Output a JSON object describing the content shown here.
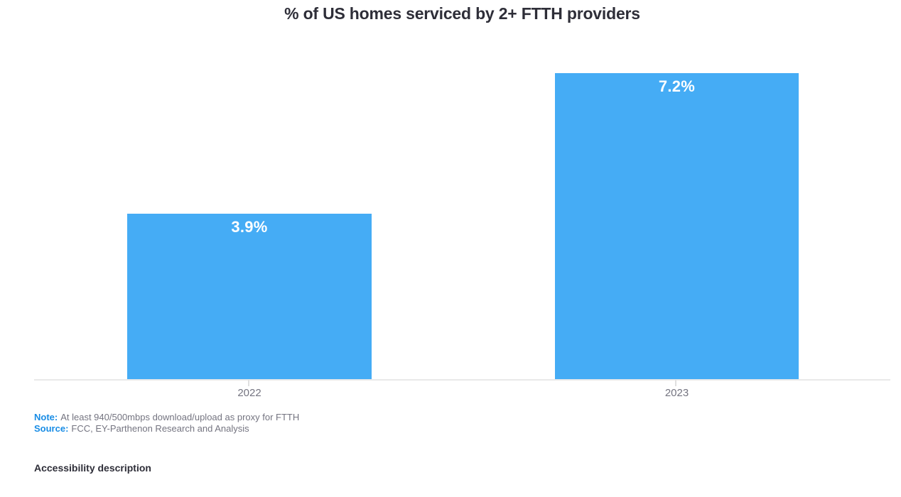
{
  "chart": {
    "title": "% of US homes serviced by 2+ FTTH providers"
  },
  "chart_data": {
    "type": "bar",
    "title": "% of US homes serviced by 2+ FTTH providers",
    "categories": [
      "2022",
      "2023"
    ],
    "values": [
      3.9,
      7.2
    ],
    "value_labels": [
      "3.9%",
      "7.2%"
    ],
    "xlabel": "",
    "ylabel": "",
    "ylim": [
      0,
      8.9
    ],
    "grid": false,
    "legend": false,
    "value_labels_position": "inside-top",
    "bar_color": "#45acf5",
    "value_label_color": "#ffffff"
  },
  "colors": {
    "bar": "#45acf5",
    "accent-blue": "#188ce5",
    "dark": "#2e2e38",
    "gray": "#747480",
    "axis": "#e9e9e9",
    "tick": "#e0e0e0",
    "white": "#ffffff",
    "bg": "#ffffff"
  },
  "footnotes": {
    "note_label": "Note:",
    "note_text": "At least 940/500mbps download/upload as proxy for FTTH",
    "source_label": "Source:",
    "source_text": "FCC, EY-Parthenon Research and Analysis"
  },
  "accessibility": {
    "label": "Accessibility description"
  }
}
